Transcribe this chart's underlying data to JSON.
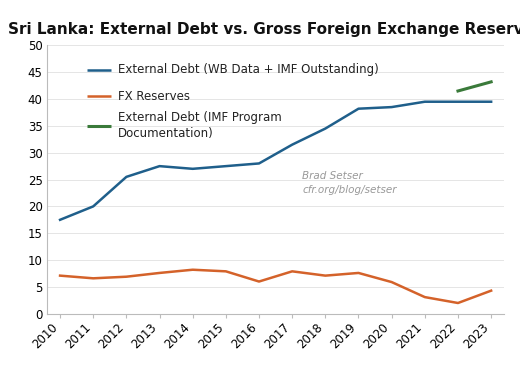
{
  "title": "Sri Lanka: External Debt vs. Gross Foreign Exchange Reserves",
  "years": [
    2010,
    2011,
    2012,
    2013,
    2014,
    2015,
    2016,
    2017,
    2018,
    2019,
    2020,
    2021,
    2022,
    2023
  ],
  "ext_debt_wb": [
    17.5,
    20.0,
    25.5,
    27.5,
    27.0,
    27.5,
    28.0,
    31.5,
    34.5,
    38.2,
    38.5,
    39.5,
    39.5,
    39.5
  ],
  "fx_reserves": [
    7.1,
    6.6,
    6.9,
    7.6,
    8.2,
    7.9,
    6.0,
    7.9,
    7.1,
    7.6,
    5.9,
    3.1,
    2.0,
    4.3
  ],
  "ext_debt_imf_years": [
    2022,
    2023
  ],
  "ext_debt_imf": [
    41.5,
    43.2
  ],
  "color_wb": "#1f5f8b",
  "color_fx": "#d4622a",
  "color_imf": "#3a7a3a",
  "legend_wb": "External Debt (WB Data + IMF Outstanding)",
  "legend_fx": "FX Reserves",
  "legend_imf": "External Debt (IMF Program\nDocumentation)",
  "annotation_line1": "Brad Setser",
  "annotation_line2": "cfr.org/blog/setser",
  "ylim": [
    0,
    50
  ],
  "yticks": [
    0,
    5,
    10,
    15,
    20,
    25,
    30,
    35,
    40,
    45,
    50
  ],
  "background_color": "#ffffff",
  "title_fontsize": 11.0,
  "label_fontsize": 8.5
}
